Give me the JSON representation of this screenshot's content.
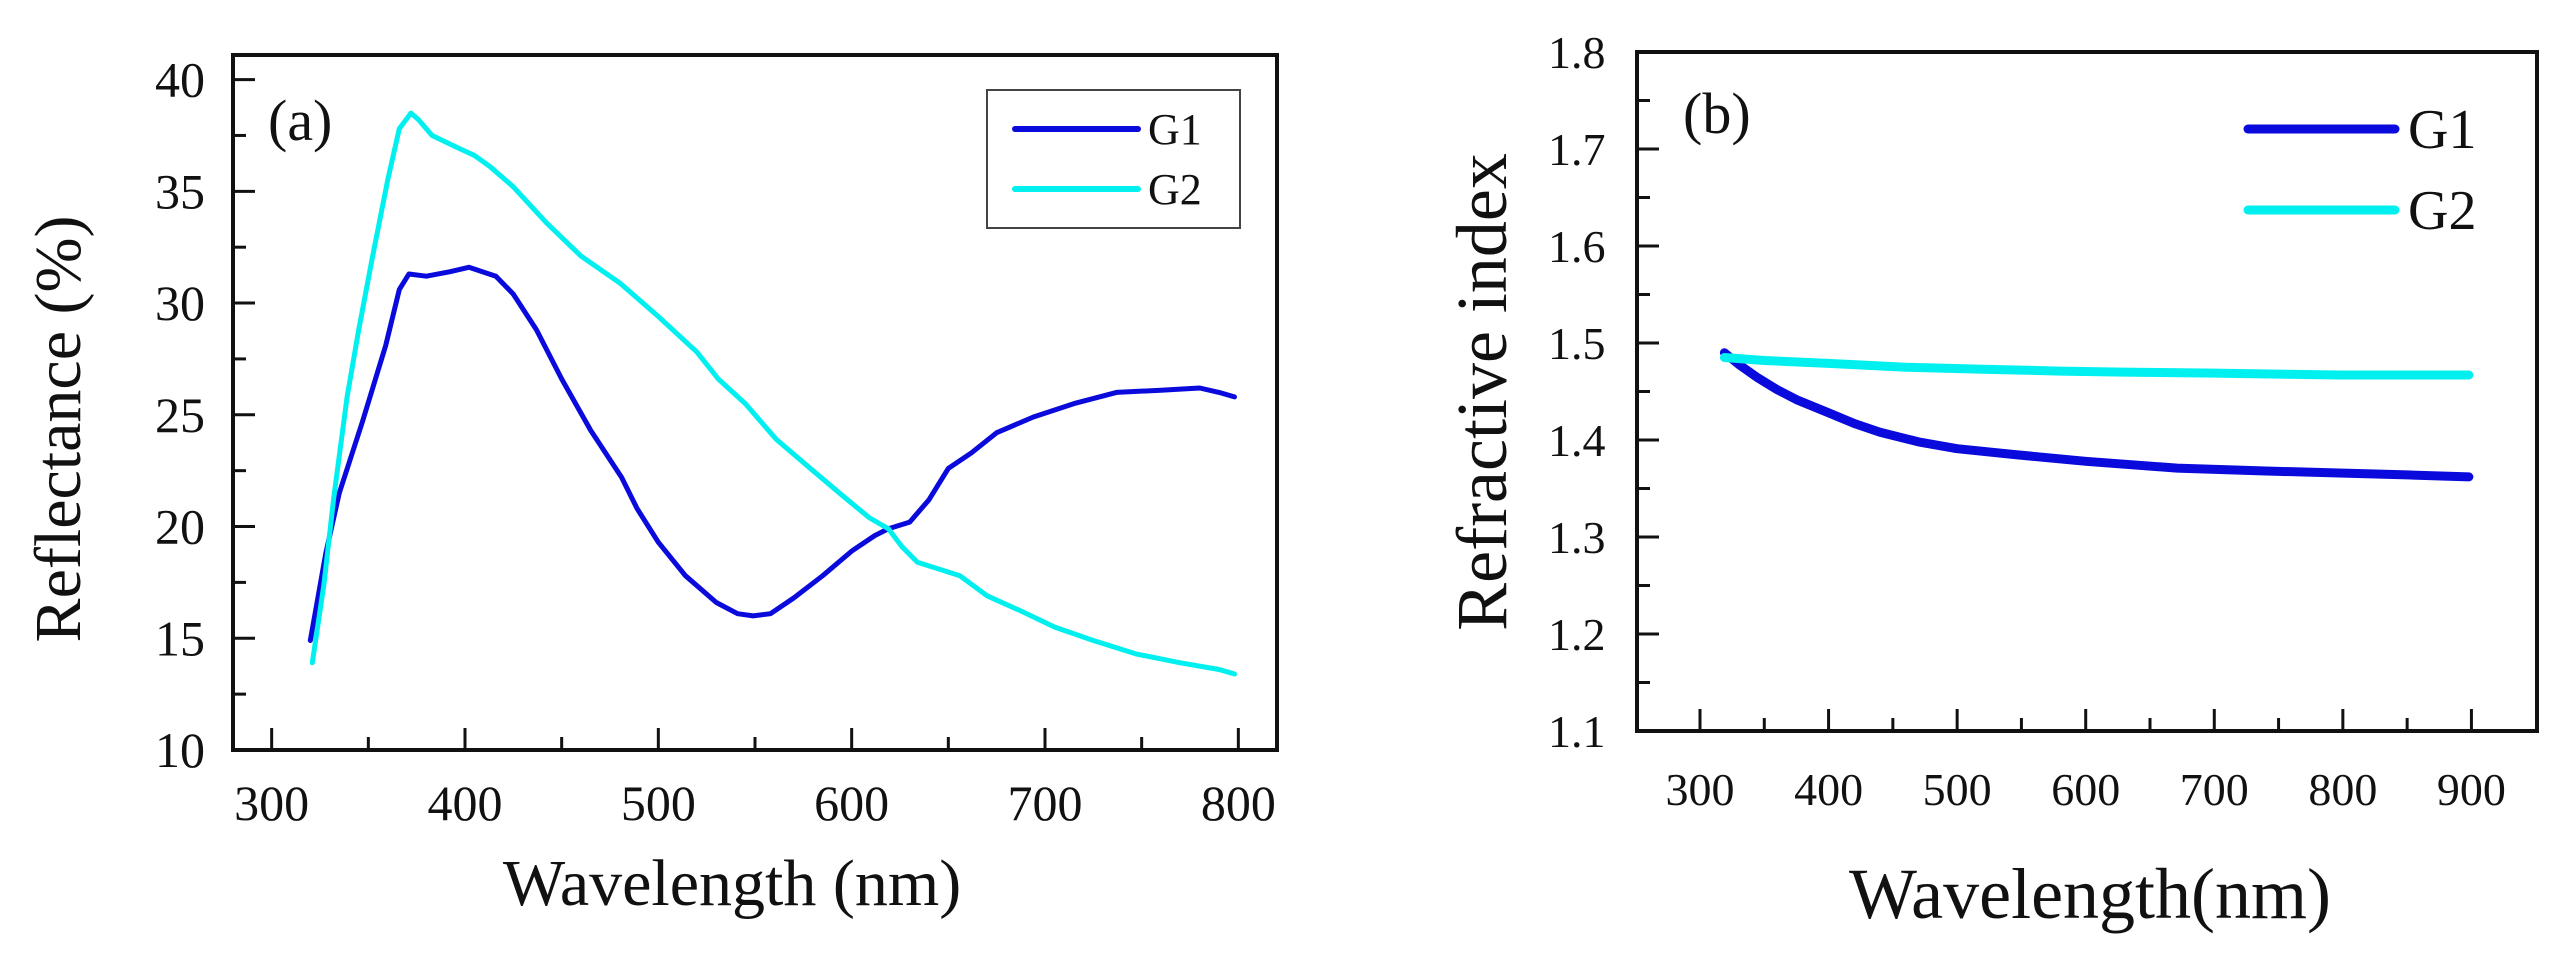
{
  "chart_data": [
    {
      "type": "line",
      "panel_label": "(a)",
      "title": "",
      "xlabel": "Wavelength (nm)",
      "ylabel": "Reflectance (%)",
      "xlim": [
        280,
        820
      ],
      "ylim": [
        10,
        41.1
      ],
      "xticks": [
        300,
        400,
        500,
        600,
        700,
        800
      ],
      "xtick_labels": [
        "300",
        "400",
        "500",
        "600",
        "700",
        "800"
      ],
      "xminor": [
        350,
        450,
        550,
        650,
        750
      ],
      "yticks": [
        10,
        15,
        20,
        25,
        30,
        35,
        40
      ],
      "ytick_labels": [
        "10",
        "15",
        "20",
        "25",
        "30",
        "35",
        "40"
      ],
      "yminor": [
        12.5,
        17.5,
        22.5,
        27.5,
        32.5,
        37.5
      ],
      "grid": false,
      "legend": {
        "position": "top-right",
        "boxed": true
      },
      "series": [
        {
          "name": "G1",
          "color": "#0A0ADC",
          "x": [
            320,
            328,
            335,
            347,
            359,
            366,
            371,
            380,
            392,
            402,
            416,
            425,
            437,
            450,
            465,
            481,
            489,
            500,
            514,
            530,
            541,
            549,
            558,
            570,
            585,
            600,
            612,
            619,
            630,
            640,
            650,
            662,
            675,
            694,
            715,
            737,
            760,
            780,
            790,
            798
          ],
          "y": [
            14.9,
            18.8,
            21.5,
            24.7,
            28.1,
            30.6,
            31.3,
            31.2,
            31.4,
            31.6,
            31.2,
            30.4,
            28.8,
            26.6,
            24.3,
            22.2,
            20.8,
            19.3,
            17.8,
            16.6,
            16.1,
            16.0,
            16.1,
            16.8,
            17.8,
            18.9,
            19.6,
            19.9,
            20.2,
            21.2,
            22.6,
            23.3,
            24.2,
            24.9,
            25.5,
            26.0,
            26.1,
            26.2,
            26.0,
            25.8
          ]
        },
        {
          "name": "G2",
          "color": "#00F0F0",
          "x": [
            321,
            327,
            332,
            339,
            345,
            352,
            360,
            366,
            372,
            376,
            383,
            395,
            405,
            413,
            425,
            442,
            460,
            480,
            500,
            520,
            531,
            545,
            561,
            580,
            595,
            609,
            619,
            626,
            634,
            645,
            656,
            670,
            688,
            705,
            725,
            747,
            770,
            790,
            798
          ],
          "y": [
            13.9,
            17.4,
            21.2,
            25.8,
            28.8,
            32.0,
            35.5,
            37.8,
            38.5,
            38.2,
            37.5,
            37.0,
            36.6,
            36.1,
            35.2,
            33.6,
            32.1,
            30.9,
            29.4,
            27.8,
            26.6,
            25.5,
            23.9,
            22.5,
            21.4,
            20.4,
            19.9,
            19.1,
            18.4,
            18.1,
            17.8,
            16.9,
            16.2,
            15.5,
            14.9,
            14.3,
            13.9,
            13.6,
            13.4
          ]
        }
      ]
    },
    {
      "type": "line",
      "panel_label": "(b)",
      "title": "",
      "xlabel": "Wavelength(nm)",
      "ylabel": "Refractive index",
      "xlim": [
        251,
        951
      ],
      "ylim": [
        1.1,
        1.8
      ],
      "xticks": [
        300,
        400,
        500,
        600,
        700,
        800,
        900
      ],
      "xtick_labels": [
        "300",
        "400",
        "500",
        "600",
        "700",
        "800",
        "900"
      ],
      "xminor": [
        350,
        450,
        550,
        650,
        750,
        850
      ],
      "yticks": [
        1.1,
        1.2,
        1.3,
        1.4,
        1.5,
        1.6,
        1.7,
        1.8
      ],
      "ytick_labels": [
        "1.1",
        "1.2",
        "1.3",
        "1.4",
        "1.5",
        "1.6",
        "1.7",
        "1.8"
      ],
      "yminor": [
        1.15,
        1.25,
        1.35,
        1.45,
        1.55,
        1.65,
        1.75
      ],
      "grid": false,
      "legend": {
        "position": "top-right",
        "boxed": false
      },
      "series": [
        {
          "name": "G1",
          "color": "#0A0ADC",
          "x": [
            319,
            330,
            345,
            360,
            376,
            400,
            420,
            440,
            470,
            500,
            545,
            600,
            671,
            740,
            797,
            850,
            898
          ],
          "y": [
            1.49,
            1.478,
            1.464,
            1.452,
            1.441,
            1.428,
            1.417,
            1.408,
            1.398,
            1.391,
            1.385,
            1.378,
            1.371,
            1.368,
            1.366,
            1.364,
            1.362
          ]
        },
        {
          "name": "G2",
          "color": "#00F0F0",
          "x": [
            319,
            350,
            400,
            461,
            520,
            580,
            629,
            700,
            797,
            850,
            898
          ],
          "y": [
            1.485,
            1.482,
            1.479,
            1.475,
            1.473,
            1.471,
            1.47,
            1.469,
            1.467,
            1.467,
            1.467
          ]
        }
      ]
    }
  ]
}
